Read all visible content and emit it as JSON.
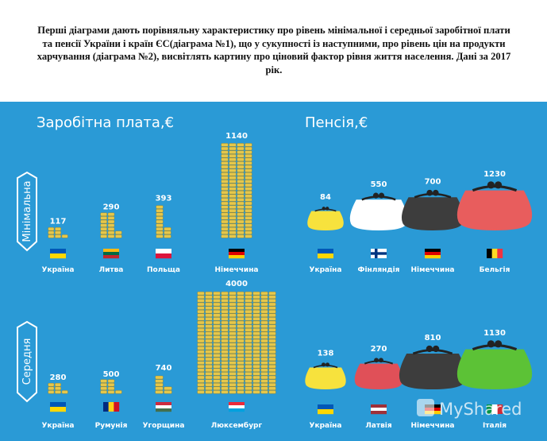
{
  "intro_text": "Перші діаграми дають порівняльну характеристику про рівень мінімальної  і середньої заробітної плати та пенсії України і країн ЄС(діаграма №1), що у сукупності із наступними, про рівень цін на продукти харчування (діаграма №2), висвітлять картину про ціновий фактор рівня життя населення. Дані за 2017 рік.",
  "watermark": "MyShared",
  "colors": {
    "background": "#2a9ad6",
    "coin": "#e6c74a",
    "coin_edge": "#8a6d10",
    "white_purse": "#ffffff",
    "dark_purse": "#3d3d3d",
    "red_purse": "#e85d5d",
    "green_purse": "#5cc236",
    "yellow_purse": "#f7e23d"
  },
  "chart_data": [
    {
      "type": "bar",
      "title": "Заробітна плата,€",
      "row": "Мінімальна",
      "unit": "€",
      "categories": [
        "Україна",
        "Литва",
        "Польща",
        "Німеччина"
      ],
      "values": [
        117,
        290,
        393,
        1140
      ],
      "flags": [
        [
          "#0057b7",
          "#ffd700"
        ],
        [
          "#fdb913",
          "#006a44",
          "#c1272d"
        ],
        [
          "#ffffff",
          "#dc143c"
        ],
        [
          "#000000",
          "#dd0000",
          "#ffce00"
        ]
      ]
    },
    {
      "type": "bar",
      "title": "Пенсія,€",
      "row": "Мінімальна",
      "unit": "€",
      "categories": [
        "Україна",
        "Фінляндія",
        "Німеччина",
        "Бельгія"
      ],
      "values": [
        84,
        550,
        700,
        1230
      ],
      "purse_colors": [
        "#f7e23d",
        "#ffffff",
        "#3d3d3d",
        "#e85d5d"
      ],
      "flags": [
        [
          "#0057b7",
          "#ffd700"
        ],
        [
          "finland"
        ],
        [
          "#000000",
          "#dd0000",
          "#ffce00"
        ],
        [
          "|#000000",
          "|#fdda24",
          "|#ef3340"
        ]
      ]
    },
    {
      "type": "bar",
      "title": "",
      "row": "Середня",
      "unit": "€",
      "categories": [
        "Україна",
        "Румунія",
        "Угорщина",
        "Люксембург"
      ],
      "values": [
        280,
        500,
        740,
        4000
      ],
      "flags": [
        [
          "#0057b7",
          "#ffd700"
        ],
        [
          "|#002b7f",
          "|#fcd116",
          "|#ce1126"
        ],
        [
          "#cd2a3e",
          "#ffffff",
          "#436f4d"
        ],
        [
          "#ed2939",
          "#ffffff",
          "#00a1de"
        ]
      ]
    },
    {
      "type": "bar",
      "title": "",
      "row": "Середня",
      "unit": "€",
      "categories": [
        "Україна",
        "Латвія",
        "Німеччина",
        "Італія"
      ],
      "values": [
        138,
        270,
        810,
        1130
      ],
      "purse_colors": [
        "#f7e23d",
        "#e05058",
        "#3d3d3d",
        "#5cc236"
      ],
      "flags": [
        [
          "#0057b7",
          "#ffd700"
        ],
        [
          "#9e3039",
          "#ffffff",
          "#9e3039"
        ],
        [
          "#000000",
          "#dd0000",
          "#ffce00"
        ],
        [
          "|#009246",
          "|#ffffff",
          "|#ce2b37"
        ]
      ]
    }
  ]
}
